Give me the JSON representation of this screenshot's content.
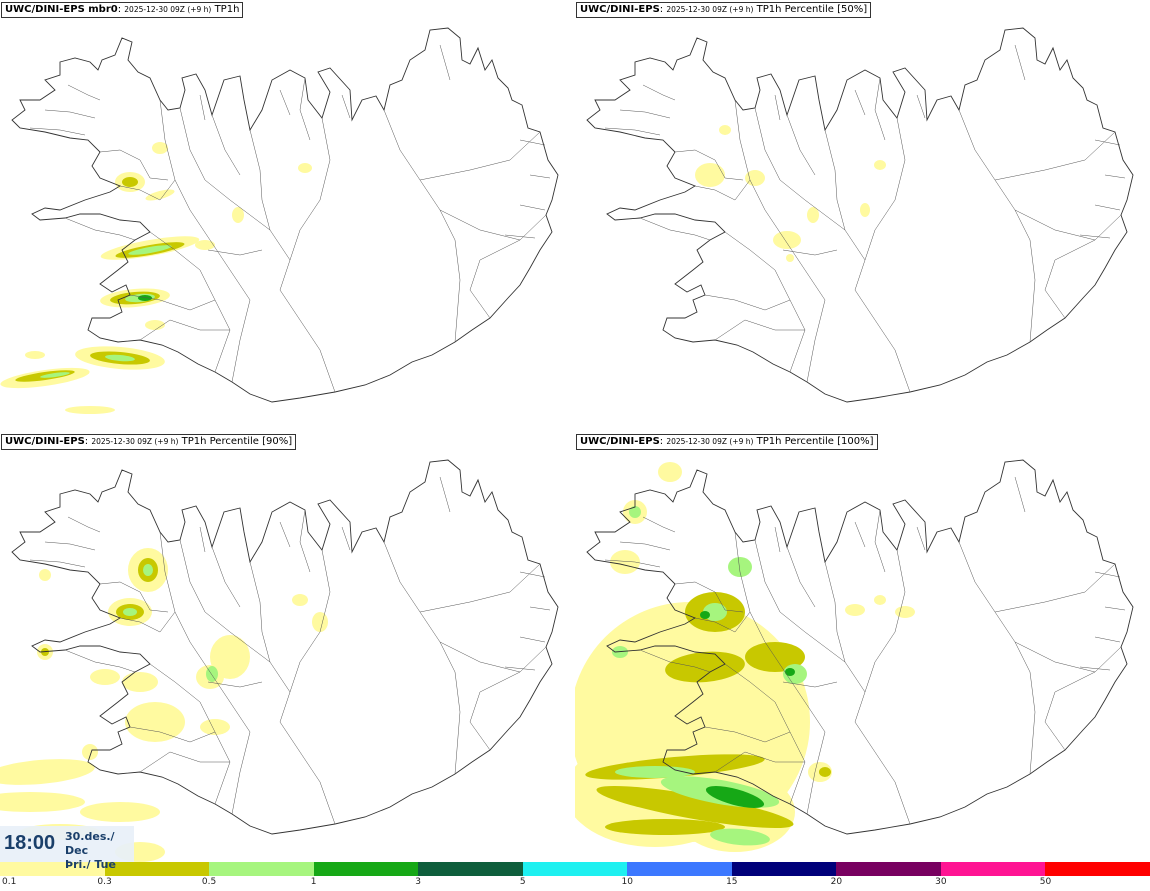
{
  "panels": [
    {
      "model": "UWC/DINI-EPS mbr0",
      "run": "2025-12-30 09Z (+9 h)",
      "param": "TP1h"
    },
    {
      "model": "UWC/DINI-EPS",
      "run": "2025-12-30 09Z (+9 h)",
      "param": "TP1h Percentile [50%]"
    },
    {
      "model": "UWC/DINI-EPS",
      "run": "2025-12-30 09Z (+9 h)",
      "param": "TP1h Percentile [90%]"
    },
    {
      "model": "UWC/DINI-EPS",
      "run": "2025-12-30 09Z (+9 h)",
      "param": "TP1h Percentile [100%]"
    }
  ],
  "valid_time": {
    "time": "18:00",
    "date_line1": "30.des./ Dec",
    "date_line2": "Þri./ Tue"
  },
  "colorbar": {
    "labels": [
      "0.1",
      "0.3",
      "0.5",
      "1",
      "3",
      "5",
      "10",
      "15",
      "20",
      "30",
      "50"
    ],
    "colors": [
      "#fffaa0",
      "#c8c800",
      "#a6f57e",
      "#16a816",
      "#0e5e3c",
      "#1ef0f0",
      "#3c78ff",
      "#00007a",
      "#780060",
      "#ff1493",
      "#ff0000"
    ]
  }
}
